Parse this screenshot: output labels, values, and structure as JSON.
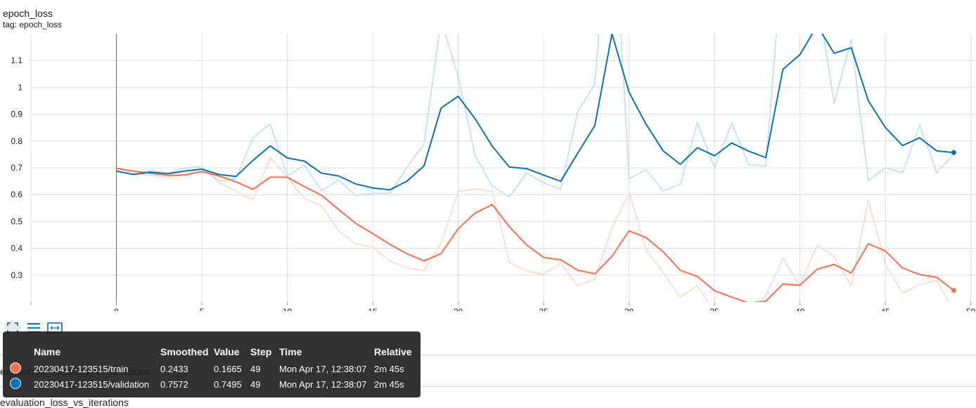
{
  "card": {
    "title": "epoch_loss",
    "tag": "tag: epoch_loss"
  },
  "background_cards": [
    "evaluation_accuracy_vs_iterations",
    "evaluation_loss_vs_iterations"
  ],
  "toolbar": {
    "fullscreen_icon": "fullscreen-icon",
    "legend_icon": "list-icon",
    "fit_icon": "fit-domain-icon"
  },
  "colors": {
    "train": "#f4704f",
    "train_raw": "#fbd7cc",
    "validation": "#0b72b5",
    "validation_raw": "#c2ddee",
    "grid": "#dcdcdc",
    "axis": "#9e9e9e"
  },
  "chart_data": {
    "type": "line",
    "x_ticks": [
      0,
      5,
      10,
      15,
      20,
      25,
      30,
      35,
      40,
      45,
      50
    ],
    "y_ticks": [
      0.3,
      0.4,
      0.5,
      0.6,
      0.7,
      0.8,
      0.9,
      1.0,
      1.1
    ],
    "y_tick_labels": [
      "0.3",
      "0.4",
      "0.5",
      "0.6",
      "0.7",
      "0.8",
      "0.9",
      "1",
      "1.1"
    ],
    "xlim": [
      -5,
      50.3
    ],
    "ylim": [
      0.2,
      1.2
    ],
    "grid": true,
    "series": [
      {
        "name": "20230417-123515/train",
        "color": "#f4704f",
        "raw_color": "#fbd7cc",
        "x": [
          0,
          1,
          2,
          3,
          4,
          5,
          6,
          7,
          8,
          9,
          10,
          11,
          12,
          13,
          14,
          15,
          16,
          17,
          18,
          19,
          20,
          21,
          22,
          23,
          24,
          25,
          26,
          27,
          28,
          29,
          30,
          31,
          32,
          33,
          34,
          35,
          36,
          37,
          38,
          39,
          40,
          41,
          42,
          43,
          44,
          45,
          46,
          47,
          48,
          49
        ],
        "smoothed": [
          0.698,
          0.688,
          0.68,
          0.672,
          0.673,
          0.686,
          0.67,
          0.648,
          0.62,
          0.665,
          0.665,
          0.63,
          0.598,
          0.545,
          0.493,
          0.455,
          0.415,
          0.38,
          0.353,
          0.38,
          0.473,
          0.532,
          0.563,
          0.48,
          0.413,
          0.366,
          0.357,
          0.318,
          0.305,
          0.37,
          0.465,
          0.44,
          0.387,
          0.318,
          0.295,
          0.242,
          0.218,
          0.196,
          0.203,
          0.267,
          0.262,
          0.322,
          0.34,
          0.308,
          0.417,
          0.39,
          0.327,
          0.302,
          0.292,
          0.243
        ],
        "raw": [
          0.698,
          0.68,
          0.672,
          0.665,
          0.674,
          0.7,
          0.645,
          0.612,
          0.58,
          0.737,
          0.665,
          0.585,
          0.558,
          0.466,
          0.416,
          0.405,
          0.352,
          0.327,
          0.316,
          0.42,
          0.612,
          0.622,
          0.612,
          0.347,
          0.315,
          0.303,
          0.345,
          0.26,
          0.285,
          0.476,
          0.607,
          0.395,
          0.31,
          0.217,
          0.26,
          0.165,
          0.16,
          0.16,
          0.222,
          0.362,
          0.262,
          0.412,
          0.37,
          0.26,
          0.578,
          0.34,
          0.233,
          0.265,
          0.28,
          0.1665
        ],
        "summary": {
          "smoothed": "0.2433",
          "value": "0.1665",
          "step": "49",
          "time": "Mon Apr 17, 12:38:07",
          "relative": "2m 45s"
        }
      },
      {
        "name": "20230417-123515/validation",
        "color": "#0b72b5",
        "raw_color": "#c2ddee",
        "x": [
          0,
          1,
          2,
          3,
          4,
          5,
          6,
          7,
          8,
          9,
          10,
          11,
          12,
          13,
          14,
          15,
          16,
          17,
          18,
          19,
          20,
          21,
          22,
          23,
          24,
          25,
          26,
          27,
          28,
          29,
          30,
          31,
          32,
          33,
          34,
          35,
          36,
          37,
          38,
          39,
          40,
          41,
          42,
          43,
          44,
          45,
          46,
          47,
          48,
          49
        ],
        "smoothed": [
          0.688,
          0.675,
          0.684,
          0.678,
          0.688,
          0.695,
          0.675,
          0.668,
          0.728,
          0.782,
          0.737,
          0.725,
          0.68,
          0.67,
          0.64,
          0.625,
          0.618,
          0.65,
          0.707,
          0.923,
          0.967,
          0.882,
          0.78,
          0.703,
          0.697,
          0.673,
          0.65,
          0.755,
          0.858,
          1.2,
          0.982,
          0.862,
          0.763,
          0.713,
          0.775,
          0.745,
          0.793,
          0.762,
          0.738,
          1.067,
          1.122,
          1.23,
          1.127,
          1.148,
          0.95,
          0.85,
          0.783,
          0.812,
          0.763,
          0.757
        ],
        "raw": [
          0.688,
          0.675,
          0.69,
          0.68,
          0.7,
          0.705,
          0.65,
          0.66,
          0.812,
          0.863,
          0.67,
          0.71,
          0.615,
          0.655,
          0.597,
          0.605,
          0.605,
          0.7,
          0.79,
          1.25,
          1.04,
          0.745,
          0.632,
          0.592,
          0.68,
          0.645,
          0.62,
          0.91,
          1.012,
          1.8,
          0.66,
          0.693,
          0.614,
          0.638,
          0.867,
          0.7,
          0.867,
          0.712,
          0.707,
          1.5,
          1.4,
          1.35,
          0.94,
          1.18,
          0.652,
          0.7,
          0.682,
          0.86,
          0.683,
          0.7495
        ],
        "summary": {
          "smoothed": "0.7572",
          "value": "0.7495",
          "step": "49",
          "time": "Mon Apr 17, 12:38:07",
          "relative": "2m 45s"
        }
      }
    ]
  },
  "tooltip": {
    "headers": {
      "name": "Name",
      "smoothed": "Smoothed",
      "value": "Value",
      "step": "Step",
      "time": "Time",
      "relative": "Relative"
    }
  }
}
